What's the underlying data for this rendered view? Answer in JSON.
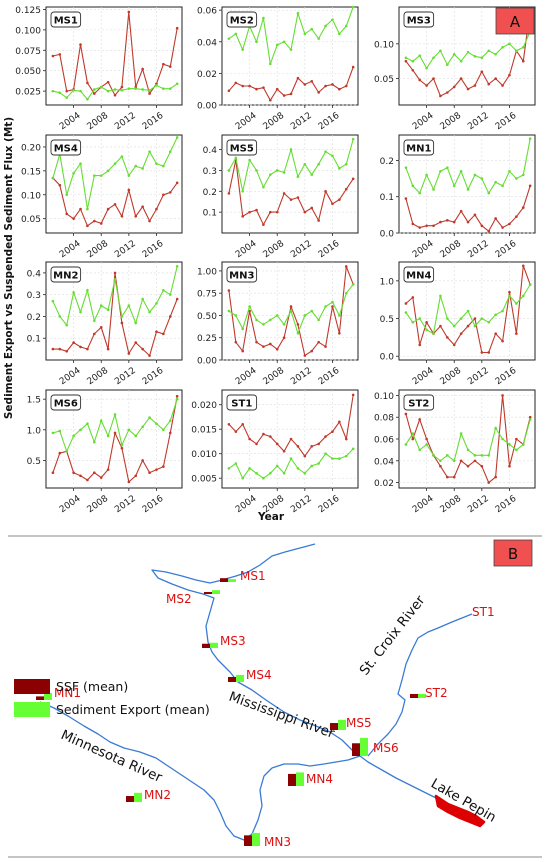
{
  "panel_a_label": "A",
  "panel_b_label": "B",
  "chart_common": {
    "xlabel": "Year",
    "ylabel": "Sediment Export vs Suspended Sediment Flux (Mt)",
    "x_tick_labels": [
      "2004",
      "2008",
      "2012",
      "2016"
    ],
    "x_ticks": [
      2004,
      2008,
      2012,
      2016
    ],
    "xlim": [
      2000,
      2019.7
    ],
    "series_colors": {
      "ssf": "#c0392b",
      "export": "#66dd33"
    }
  },
  "chart_data": [
    {
      "type": "line",
      "title": "MS1",
      "ylim": [
        0.008,
        0.128
      ],
      "y_ticks": [
        0.025,
        0.05,
        0.075,
        0.1,
        0.125
      ],
      "y_tick_labels": [
        "0.025",
        "0.050",
        "0.075",
        "0.100",
        "0.125"
      ],
      "x": [
        2001,
        2002,
        2003,
        2004,
        2005,
        2006,
        2007,
        2008,
        2009,
        2010,
        2011,
        2012,
        2013,
        2014,
        2015,
        2016,
        2017,
        2018,
        2019
      ],
      "series": [
        {
          "key": "ssf",
          "values": [
            0.068,
            0.07,
            0.025,
            0.027,
            0.082,
            0.035,
            0.022,
            0.03,
            0.036,
            0.02,
            0.03,
            0.122,
            0.03,
            0.052,
            0.022,
            0.034,
            0.058,
            0.055,
            0.102
          ]
        },
        {
          "key": "export",
          "values": [
            0.025,
            0.023,
            0.017,
            0.026,
            0.025,
            0.015,
            0.027,
            0.03,
            0.025,
            0.027,
            0.026,
            0.028,
            0.028,
            0.027,
            0.026,
            0.032,
            0.028,
            0.028,
            0.034
          ]
        }
      ]
    },
    {
      "type": "line",
      "title": "MS2",
      "ylim": [
        0.0,
        0.062
      ],
      "y_ticks": [
        0.0,
        0.02,
        0.04,
        0.06
      ],
      "y_tick_labels": [
        "0.00",
        "0.02",
        "0.04",
        "0.06"
      ],
      "x": [
        2001,
        2002,
        2003,
        2004,
        2005,
        2006,
        2007,
        2008,
        2009,
        2010,
        2011,
        2012,
        2013,
        2014,
        2015,
        2016,
        2017,
        2018,
        2019
      ],
      "series": [
        {
          "key": "ssf",
          "values": [
            0.009,
            0.014,
            0.012,
            0.012,
            0.01,
            0.011,
            0.003,
            0.01,
            0.006,
            0.007,
            0.017,
            0.013,
            0.015,
            0.008,
            0.012,
            0.013,
            0.01,
            0.012,
            0.024
          ]
        },
        {
          "key": "export",
          "values": [
            0.042,
            0.045,
            0.035,
            0.05,
            0.04,
            0.055,
            0.026,
            0.038,
            0.04,
            0.035,
            0.058,
            0.045,
            0.048,
            0.042,
            0.05,
            0.054,
            0.045,
            0.05,
            0.062
          ]
        }
      ]
    },
    {
      "type": "line",
      "title": "MS3",
      "ylim": [
        0.012,
        0.153
      ],
      "y_ticks": [
        0.05,
        0.1
      ],
      "y_tick_labels": [
        "0.05",
        "0.10"
      ],
      "x": [
        2001,
        2002,
        2003,
        2004,
        2005,
        2006,
        2007,
        2008,
        2009,
        2010,
        2011,
        2012,
        2013,
        2014,
        2015,
        2016,
        2017,
        2018,
        2019
      ],
      "series": [
        {
          "key": "ssf",
          "values": [
            0.075,
            0.062,
            0.048,
            0.04,
            0.05,
            0.025,
            0.03,
            0.038,
            0.05,
            0.035,
            0.04,
            0.06,
            0.042,
            0.05,
            0.04,
            0.055,
            0.09,
            0.075,
            0.15
          ]
        },
        {
          "key": "export",
          "values": [
            0.08,
            0.075,
            0.083,
            0.065,
            0.08,
            0.09,
            0.07,
            0.085,
            0.075,
            0.088,
            0.082,
            0.08,
            0.09,
            0.085,
            0.095,
            0.1,
            0.09,
            0.095,
            0.118
          ]
        }
      ]
    },
    {
      "type": "line",
      "title": "MS4",
      "ylim": [
        0.02,
        0.225
      ],
      "y_ticks": [
        0.05,
        0.1,
        0.15,
        0.2
      ],
      "y_tick_labels": [
        "0.05",
        "0.10",
        "0.15",
        "0.20"
      ],
      "x": [
        2001,
        2002,
        2003,
        2004,
        2005,
        2006,
        2007,
        2008,
        2009,
        2010,
        2011,
        2012,
        2013,
        2014,
        2015,
        2016,
        2017,
        2018,
        2019
      ],
      "series": [
        {
          "key": "ssf",
          "values": [
            0.135,
            0.12,
            0.06,
            0.05,
            0.07,
            0.035,
            0.045,
            0.04,
            0.07,
            0.08,
            0.055,
            0.11,
            0.055,
            0.075,
            0.045,
            0.07,
            0.1,
            0.105,
            0.125
          ]
        },
        {
          "key": "export",
          "values": [
            0.135,
            0.185,
            0.1,
            0.145,
            0.165,
            0.07,
            0.14,
            0.14,
            0.15,
            0.165,
            0.18,
            0.14,
            0.16,
            0.155,
            0.19,
            0.165,
            0.16,
            0.19,
            0.22
          ]
        }
      ]
    },
    {
      "type": "line",
      "title": "MS5",
      "ylim": [
        0.0,
        0.47
      ],
      "y_ticks": [
        0.1,
        0.2,
        0.3,
        0.4
      ],
      "y_tick_labels": [
        "0.1",
        "0.2",
        "0.3",
        "0.4"
      ],
      "x": [
        2001,
        2002,
        2003,
        2004,
        2005,
        2006,
        2007,
        2008,
        2009,
        2010,
        2011,
        2012,
        2013,
        2014,
        2015,
        2016,
        2017,
        2018,
        2019
      ],
      "series": [
        {
          "key": "ssf",
          "values": [
            0.19,
            0.35,
            0.08,
            0.1,
            0.11,
            0.04,
            0.1,
            0.1,
            0.19,
            0.16,
            0.17,
            0.1,
            0.12,
            0.06,
            0.2,
            0.14,
            0.16,
            0.21,
            0.26
          ]
        },
        {
          "key": "export",
          "values": [
            0.3,
            0.36,
            0.2,
            0.35,
            0.3,
            0.22,
            0.28,
            0.3,
            0.29,
            0.4,
            0.27,
            0.33,
            0.28,
            0.33,
            0.39,
            0.37,
            0.31,
            0.33,
            0.45
          ]
        }
      ]
    },
    {
      "type": "line",
      "title": "MN1",
      "ylim": [
        0.0,
        0.27
      ],
      "y_ticks": [
        0.0,
        0.1,
        0.2
      ],
      "y_tick_labels": [
        "0.0",
        "0.1",
        "0.2"
      ],
      "x": [
        2001,
        2002,
        2003,
        2004,
        2005,
        2006,
        2007,
        2008,
        2009,
        2010,
        2011,
        2012,
        2013,
        2014,
        2015,
        2016,
        2017,
        2018,
        2019
      ],
      "series": [
        {
          "key": "ssf",
          "values": [
            0.095,
            0.025,
            0.015,
            0.02,
            0.02,
            0.03,
            0.035,
            0.03,
            0.06,
            0.03,
            0.05,
            0.02,
            0.005,
            0.04,
            0.015,
            0.025,
            0.045,
            0.07,
            0.13
          ]
        },
        {
          "key": "export",
          "values": [
            0.18,
            0.13,
            0.11,
            0.16,
            0.12,
            0.17,
            0.18,
            0.13,
            0.17,
            0.12,
            0.16,
            0.15,
            0.11,
            0.14,
            0.13,
            0.17,
            0.15,
            0.16,
            0.26
          ]
        }
      ]
    },
    {
      "type": "line",
      "title": "MN2",
      "ylim": [
        0.0,
        0.45
      ],
      "y_ticks": [
        0.1,
        0.2,
        0.3,
        0.4
      ],
      "y_tick_labels": [
        "0.1",
        "0.2",
        "0.3",
        "0.4"
      ],
      "x": [
        2001,
        2002,
        2003,
        2004,
        2005,
        2006,
        2007,
        2008,
        2009,
        2010,
        2011,
        2012,
        2013,
        2014,
        2015,
        2016,
        2017,
        2018,
        2019
      ],
      "series": [
        {
          "key": "ssf",
          "values": [
            0.05,
            0.05,
            0.04,
            0.08,
            0.06,
            0.05,
            0.12,
            0.15,
            0.05,
            0.4,
            0.17,
            0.03,
            0.08,
            0.05,
            0.02,
            0.13,
            0.12,
            0.2,
            0.28
          ]
        },
        {
          "key": "export",
          "values": [
            0.27,
            0.2,
            0.16,
            0.31,
            0.22,
            0.32,
            0.18,
            0.25,
            0.23,
            0.37,
            0.2,
            0.25,
            0.17,
            0.28,
            0.22,
            0.26,
            0.32,
            0.3,
            0.43
          ]
        }
      ]
    },
    {
      "type": "line",
      "title": "MN3",
      "ylim": [
        0.0,
        1.1
      ],
      "y_ticks": [
        0.0,
        0.25,
        0.5,
        0.75,
        1.0
      ],
      "y_tick_labels": [
        "0.00",
        "0.25",
        "0.50",
        "0.75",
        "1.00"
      ],
      "x": [
        2001,
        2002,
        2003,
        2004,
        2005,
        2006,
        2007,
        2008,
        2009,
        2010,
        2011,
        2012,
        2013,
        2014,
        2015,
        2016,
        2017,
        2018,
        2019
      ],
      "series": [
        {
          "key": "ssf",
          "values": [
            0.78,
            0.2,
            0.1,
            0.55,
            0.2,
            0.15,
            0.18,
            0.12,
            0.25,
            0.6,
            0.4,
            0.05,
            0.1,
            0.2,
            0.15,
            0.6,
            0.3,
            1.05,
            0.85
          ]
        },
        {
          "key": "export",
          "values": [
            0.55,
            0.5,
            0.35,
            0.6,
            0.45,
            0.4,
            0.45,
            0.5,
            0.4,
            0.55,
            0.3,
            0.5,
            0.55,
            0.45,
            0.6,
            0.65,
            0.5,
            0.75,
            0.85
          ]
        }
      ]
    },
    {
      "type": "line",
      "title": "MN4",
      "ylim": [
        -0.05,
        1.25
      ],
      "y_ticks": [
        0.0,
        0.5,
        1.0
      ],
      "y_tick_labels": [
        "0.0",
        "0.5",
        "1.0"
      ],
      "x": [
        2001,
        2002,
        2003,
        2004,
        2005,
        2006,
        2007,
        2008,
        2009,
        2010,
        2011,
        2012,
        2013,
        2014,
        2015,
        2016,
        2017,
        2018,
        2019
      ],
      "series": [
        {
          "key": "ssf",
          "values": [
            0.7,
            0.78,
            0.15,
            0.45,
            0.3,
            0.4,
            0.25,
            0.15,
            0.3,
            0.4,
            0.5,
            0.05,
            0.05,
            0.3,
            0.2,
            0.85,
            0.3,
            1.2,
            0.95
          ]
        },
        {
          "key": "export",
          "values": [
            0.58,
            0.45,
            0.5,
            0.35,
            0.3,
            0.8,
            0.5,
            0.4,
            0.5,
            0.6,
            0.4,
            0.5,
            0.45,
            0.55,
            0.6,
            0.8,
            0.7,
            0.8,
            0.95
          ]
        }
      ]
    },
    {
      "type": "line",
      "title": "MS6",
      "ylim": [
        0.05,
        1.65
      ],
      "y_ticks": [
        0.5,
        1.0,
        1.5
      ],
      "y_tick_labels": [
        "0.5",
        "1.0",
        "1.5"
      ],
      "x": [
        2001,
        2002,
        2003,
        2004,
        2005,
        2006,
        2007,
        2008,
        2009,
        2010,
        2011,
        2012,
        2013,
        2014,
        2015,
        2016,
        2017,
        2018,
        2019
      ],
      "series": [
        {
          "key": "ssf",
          "values": [
            0.3,
            0.62,
            0.65,
            0.3,
            0.25,
            0.18,
            0.3,
            0.22,
            0.35,
            0.95,
            0.7,
            0.15,
            0.25,
            0.5,
            0.3,
            0.35,
            0.4,
            0.95,
            1.55
          ]
        },
        {
          "key": "export",
          "values": [
            0.95,
            0.98,
            0.65,
            0.9,
            1.0,
            1.1,
            0.8,
            1.15,
            0.9,
            1.25,
            0.75,
            1.0,
            0.9,
            1.05,
            1.2,
            1.1,
            1.0,
            1.15,
            1.5
          ]
        }
      ]
    },
    {
      "type": "line",
      "title": "ST1",
      "ylim": [
        0.003,
        0.023
      ],
      "y_ticks": [
        0.005,
        0.01,
        0.015,
        0.02
      ],
      "y_tick_labels": [
        "0.005",
        "0.010",
        "0.015",
        "0.020"
      ],
      "x": [
        2001,
        2002,
        2003,
        2004,
        2005,
        2006,
        2007,
        2008,
        2009,
        2010,
        2011,
        2012,
        2013,
        2014,
        2015,
        2016,
        2017,
        2018,
        2019
      ],
      "series": [
        {
          "key": "ssf",
          "values": [
            0.016,
            0.0145,
            0.016,
            0.013,
            0.012,
            0.014,
            0.0135,
            0.012,
            0.0105,
            0.013,
            0.0115,
            0.0095,
            0.0115,
            0.012,
            0.0135,
            0.0145,
            0.0165,
            0.013,
            0.022
          ]
        },
        {
          "key": "export",
          "values": [
            0.007,
            0.008,
            0.005,
            0.007,
            0.006,
            0.005,
            0.006,
            0.0075,
            0.006,
            0.009,
            0.007,
            0.006,
            0.0075,
            0.008,
            0.01,
            0.009,
            0.009,
            0.0095,
            0.011
          ]
        }
      ]
    },
    {
      "type": "line",
      "title": "ST2",
      "ylim": [
        0.015,
        0.105
      ],
      "y_ticks": [
        0.02,
        0.04,
        0.06,
        0.08,
        0.1
      ],
      "y_tick_labels": [
        "0.02",
        "0.04",
        "0.06",
        "0.08",
        "0.10"
      ],
      "x": [
        2001,
        2002,
        2003,
        2004,
        2005,
        2006,
        2007,
        2008,
        2009,
        2010,
        2011,
        2012,
        2013,
        2014,
        2015,
        2016,
        2017,
        2018,
        2019
      ],
      "series": [
        {
          "key": "ssf",
          "values": [
            0.083,
            0.06,
            0.078,
            0.06,
            0.045,
            0.035,
            0.025,
            0.025,
            0.04,
            0.035,
            0.04,
            0.035,
            0.02,
            0.025,
            0.1,
            0.035,
            0.06,
            0.055,
            0.08
          ]
        },
        {
          "key": "export",
          "values": [
            0.055,
            0.065,
            0.05,
            0.055,
            0.045,
            0.04,
            0.045,
            0.04,
            0.065,
            0.05,
            0.045,
            0.045,
            0.045,
            0.07,
            0.06,
            0.055,
            0.05,
            0.055,
            0.078
          ]
        }
      ]
    }
  ],
  "map": {
    "legend": [
      {
        "label": "SSF (mean)",
        "color": "#8b0000"
      },
      {
        "label": "Sediment Export (mean)",
        "color": "#66ff33"
      }
    ],
    "river_labels": {
      "mississippi": "Mississippi River",
      "minnesota": "Minnesota River",
      "st_croix": "St. Croix River",
      "lake": "Lake Pepin"
    },
    "colors": {
      "river": "#3a7bd5",
      "station_text": "#dd1111",
      "lake": "#dd0000"
    },
    "stations": [
      {
        "name": "MS1",
        "ssf": 0.045,
        "export": 0.026
      },
      {
        "name": "MS2",
        "ssf": 0.012,
        "export": 0.046
      },
      {
        "name": "MS3",
        "ssf": 0.056,
        "export": 0.086
      },
      {
        "name": "MS4",
        "ssf": 0.078,
        "export": 0.155
      },
      {
        "name": "MS5",
        "ssf": 0.15,
        "export": 0.32
      },
      {
        "name": "MS6",
        "ssf": 0.5,
        "export": 1.02
      },
      {
        "name": "MN1",
        "ssf": 0.04,
        "export": 0.155
      },
      {
        "name": "MN2",
        "ssf": 0.11,
        "export": 0.26
      },
      {
        "name": "MN3",
        "ssf": 0.35,
        "export": 0.53
      },
      {
        "name": "MN4",
        "ssf": 0.45,
        "export": 0.57
      },
      {
        "name": "ST1",
        "ssf": 0.0135,
        "export": 0.0075
      },
      {
        "name": "ST2",
        "ssf": 0.05,
        "export": 0.052
      }
    ]
  }
}
